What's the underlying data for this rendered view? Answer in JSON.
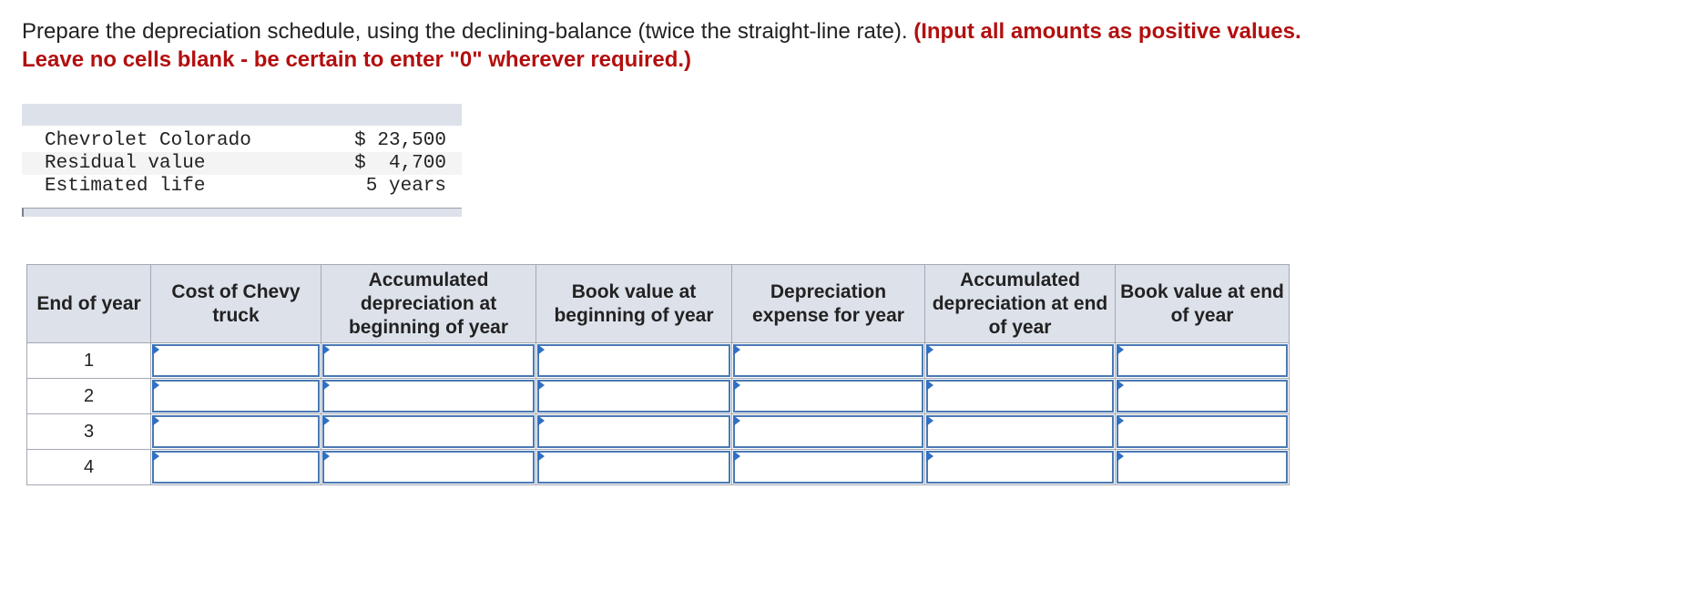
{
  "instructions": {
    "text_plain": "Prepare the depreciation schedule, using the declining-balance (twice the straight-line rate). ",
    "text_warning_1": "(Input all amounts as positive values.",
    "text_warning_2": "Leave no cells blank - be certain to enter \"0\" wherever required.)"
  },
  "info": {
    "rows": [
      {
        "label": "Chevrolet Colorado",
        "value": "$ 23,500"
      },
      {
        "label": "Residual value",
        "value": "$  4,700"
      },
      {
        "label": "Estimated life",
        "value": "5 years"
      }
    ]
  },
  "schedule": {
    "headers": [
      "End of year",
      "Cost of Chevy truck",
      "Accumulated depreciation at beginning of year",
      "Book value at beginning of year",
      "Depreciation expense for year",
      "Accumulated depreciation at end of year",
      "Book value at end of year"
    ],
    "years": [
      "1",
      "2",
      "3",
      "4"
    ],
    "values": [
      [
        "",
        "",
        "",
        "",
        "",
        ""
      ],
      [
        "",
        "",
        "",
        "",
        "",
        ""
      ],
      [
        "",
        "",
        "",
        "",
        "",
        ""
      ],
      [
        "",
        "",
        "",
        "",
        "",
        ""
      ]
    ]
  },
  "colors": {
    "warning": "#b30f0f",
    "header_bg": "#dde1ea",
    "input_border": "#4a79b4"
  }
}
